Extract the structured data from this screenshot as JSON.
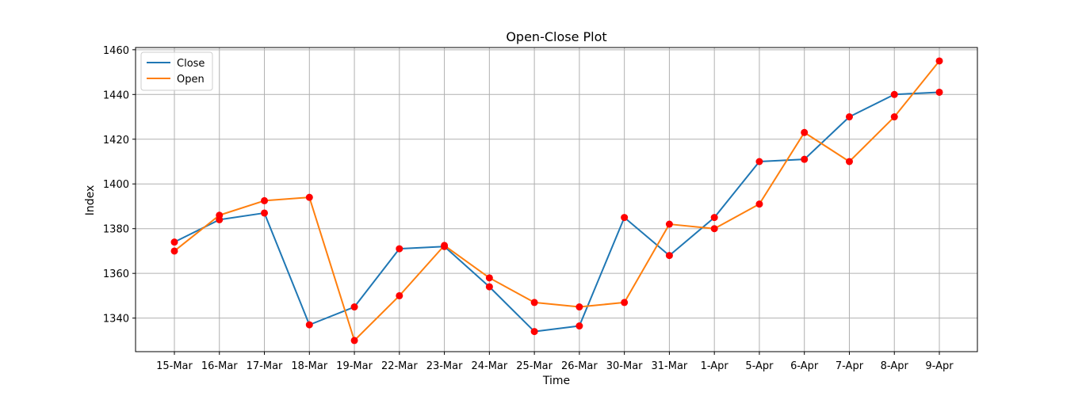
{
  "chart_data": {
    "type": "line",
    "title": "Open-Close Plot",
    "xlabel": "Time",
    "ylabel": "Index",
    "categories": [
      "15-Mar",
      "16-Mar",
      "17-Mar",
      "18-Mar",
      "19-Mar",
      "22-Mar",
      "23-Mar",
      "24-Mar",
      "25-Mar",
      "26-Mar",
      "30-Mar",
      "31-Mar",
      "1-Apr",
      "5-Apr",
      "6-Apr",
      "7-Apr",
      "8-Apr",
      "9-Apr"
    ],
    "series": [
      {
        "name": "Close",
        "color": "#1f77b4",
        "values": [
          1374,
          1384,
          1387,
          1337,
          1345,
          1371,
          1372,
          1354,
          1334,
          1336.5,
          1385,
          1368,
          1385,
          1410,
          1411,
          1430,
          1440,
          1441
        ]
      },
      {
        "name": "Open",
        "color": "#ff7f0e",
        "values": [
          1370,
          1386,
          1392.5,
          1394,
          1330,
          1350,
          1372.5,
          1358,
          1347,
          1345,
          1347,
          1382,
          1380,
          1391,
          1423,
          1410,
          1430,
          1455
        ]
      }
    ],
    "marker_color": "#ff0000",
    "ylim": [
      1325,
      1461
    ],
    "yticks": [
      1340,
      1360,
      1380,
      1400,
      1420,
      1440,
      1460
    ],
    "grid": true,
    "legend_position": "top-left"
  }
}
